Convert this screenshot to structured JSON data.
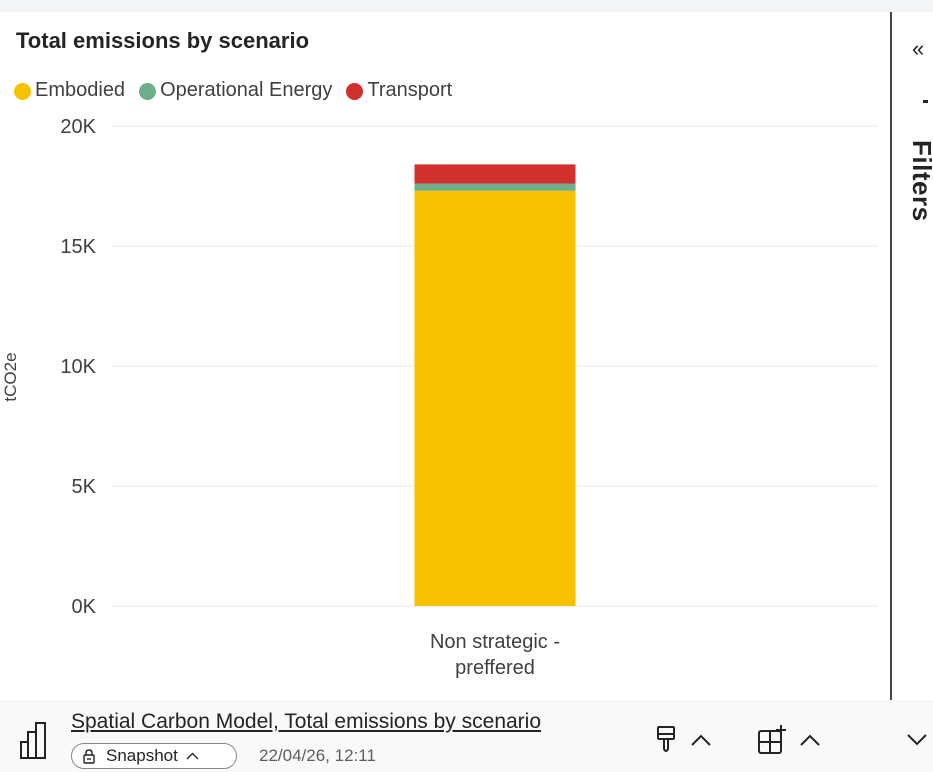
{
  "visual": {
    "title": "Total emissions by scenario"
  },
  "legend": [
    {
      "label": "Embodied",
      "color": "#F5C100"
    },
    {
      "label": "Operational Energy",
      "color": "#6EAE8A"
    },
    {
      "label": "Transport",
      "color": "#D0312D"
    }
  ],
  "chart_data": {
    "type": "bar",
    "stacked": true,
    "title": "Total emissions by scenario",
    "categories": [
      "Non strategic - preffered"
    ],
    "category_label_lines": [
      [
        "Non strategic -",
        "preffered"
      ]
    ],
    "series": [
      {
        "name": "Embodied",
        "color": "#F5C100",
        "values": [
          17300
        ]
      },
      {
        "name": "Operational Energy",
        "color": "#6EAE8A",
        "values": [
          300
        ]
      },
      {
        "name": "Transport",
        "color": "#D0312D",
        "values": [
          800
        ]
      }
    ],
    "xlabel": "",
    "ylabel": "tCO2e",
    "ylim": [
      0,
      20000
    ],
    "yticks": [
      0,
      5000,
      10000,
      15000,
      20000
    ],
    "ytick_labels": [
      "0K",
      "5K",
      "10K",
      "15K",
      "20K"
    ],
    "grid": true,
    "legend_position": "top-left"
  },
  "filters_pane": {
    "label": "Filters",
    "collapse_icon": "double-chevron-left-icon"
  },
  "footer": {
    "report_link": "Spatial Carbon Model, Total emissions by scenario",
    "snapshot_label": "Snapshot",
    "timestamp": "22/04/26, 12:11",
    "icons": [
      "report-icon",
      "lock-icon",
      "format-paint-icon",
      "insert-visual-icon",
      "chevron-up-icon",
      "chevron-down-icon"
    ]
  }
}
